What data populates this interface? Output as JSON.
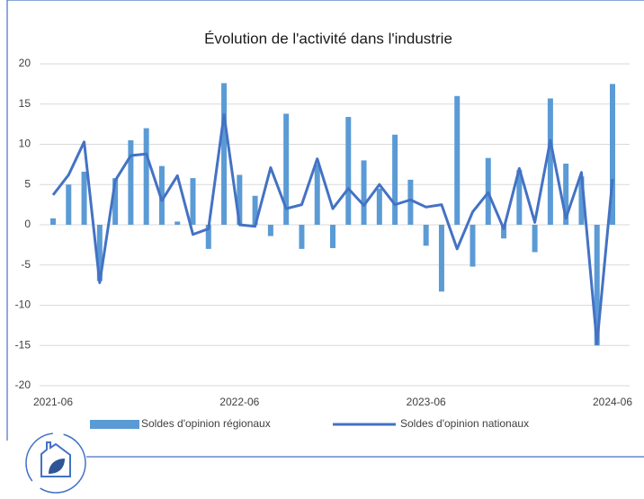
{
  "chart_data": {
    "type": "bar",
    "title": "Évolution de l'activité dans l'industrie",
    "categories": [
      "2021-06",
      null,
      null,
      null,
      null,
      null,
      null,
      null,
      null,
      null,
      null,
      null,
      "2022-06",
      null,
      null,
      null,
      null,
      null,
      null,
      null,
      null,
      null,
      null,
      null,
      "2023-06",
      null,
      null,
      null,
      null,
      null,
      null,
      null,
      null,
      null,
      null,
      null,
      "2024-06"
    ],
    "series": [
      {
        "name": "Soldes d'opinion régionaux",
        "type": "bar",
        "color": "#5b9bd5",
        "values": [
          0.8,
          5.0,
          6.6,
          -7.0,
          5.8,
          10.5,
          12.0,
          7.3,
          0.4,
          5.8,
          -3.0,
          17.6,
          6.2,
          3.6,
          -1.4,
          13.8,
          -3.0,
          7.5,
          -2.9,
          13.4,
          8.0,
          4.5,
          11.2,
          5.6,
          -2.6,
          -8.3,
          16.0,
          -5.2,
          8.3,
          -1.7,
          6.8,
          -3.4,
          15.7,
          7.6,
          6.0,
          -15.0,
          17.5
        ]
      },
      {
        "name": "Soldes d'opinion nationaux",
        "type": "line",
        "color": "#4472c4",
        "values": [
          3.7,
          6.2,
          10.3,
          -7.2,
          5.5,
          8.6,
          8.8,
          3.0,
          6.1,
          -1.2,
          -0.5,
          13.7,
          0.0,
          -0.2,
          7.1,
          2.0,
          2.5,
          8.2,
          2.0,
          4.5,
          2.4,
          5.0,
          2.5,
          3.1,
          2.2,
          2.5,
          -3.0,
          1.6,
          4.0,
          -0.5,
          7.0,
          0.3,
          10.5,
          0.8,
          6.5,
          -14.8,
          5.7
        ]
      }
    ],
    "ylim": [
      -20,
      20
    ],
    "yticks": [
      -20,
      -15,
      -10,
      -5,
      0,
      5,
      10,
      15,
      20
    ],
    "grid": true,
    "legend": "bottom"
  }
}
